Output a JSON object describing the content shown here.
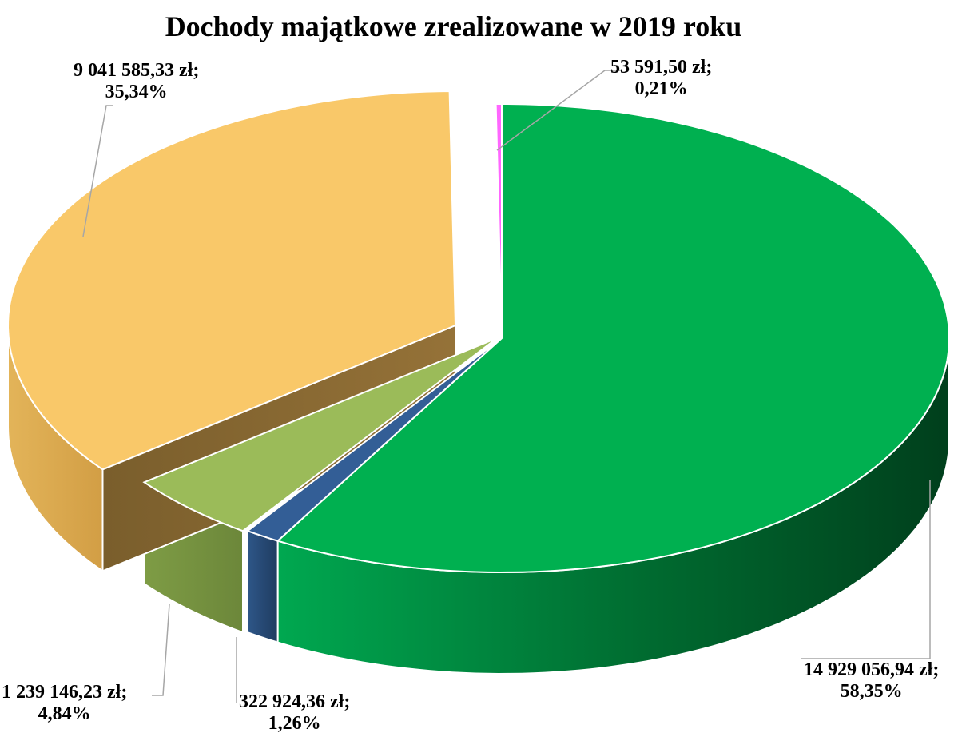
{
  "chart_data": {
    "type": "pie",
    "title": "Dochody majątkowe zrealizowane w 2019 roku",
    "slices": [
      {
        "value": 14929056.94,
        "percent": 58.35,
        "value_label": "14 929 056,94 zł;",
        "percent_label": "58,35%",
        "color": "#00B050"
      },
      {
        "value": 322924.36,
        "percent": 1.26,
        "value_label": "322 924,36 zł;",
        "percent_label": "1,26%",
        "color": "#335E96"
      },
      {
        "value": 1239146.23,
        "percent": 4.84,
        "value_label": "1 239 146,23 zł;",
        "percent_label": "4,84%",
        "color": "#9BBB59"
      },
      {
        "value": 9041585.33,
        "percent": 35.34,
        "value_label": "9 041 585,33 zł;",
        "percent_label": "35,34%",
        "color": "#F9C869"
      },
      {
        "value": 53591.5,
        "percent": 0.21,
        "value_label": "53 591,50 zł;",
        "percent_label": "0,21%",
        "color": "#FF66FF"
      }
    ],
    "legend": "none"
  }
}
